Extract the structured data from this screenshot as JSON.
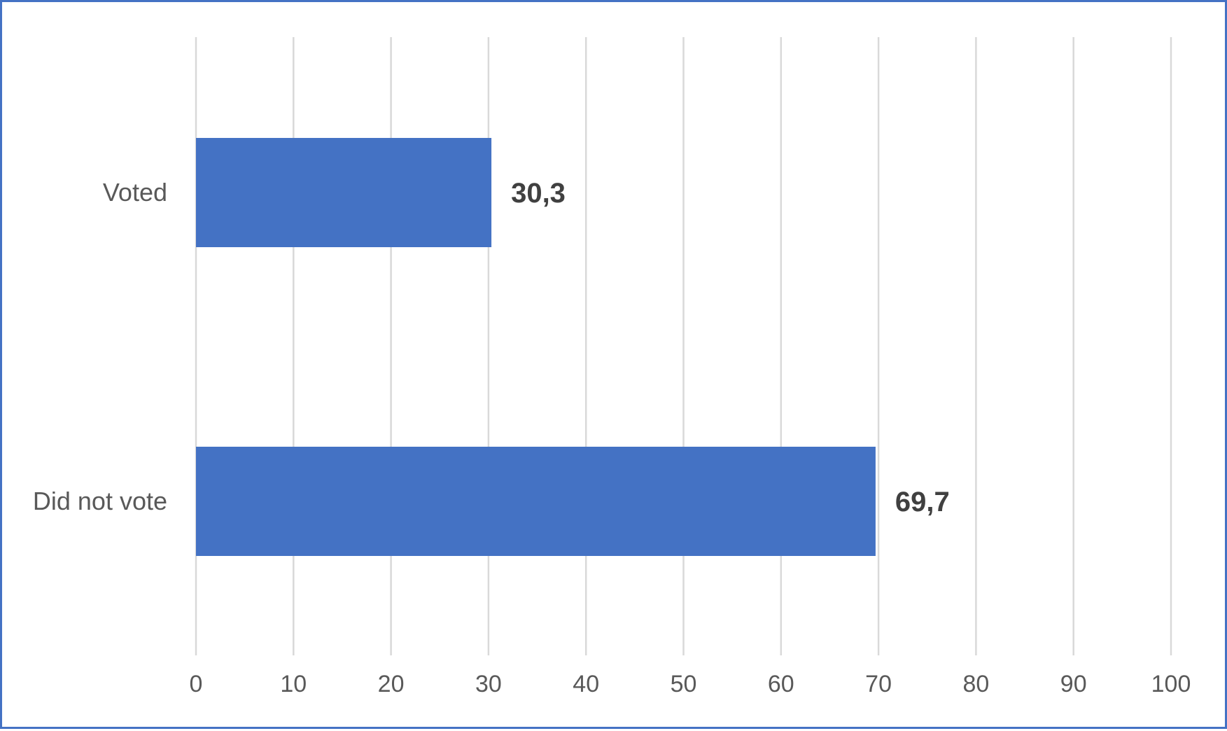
{
  "chart_data": {
    "type": "bar",
    "orientation": "horizontal",
    "categories": [
      "Voted",
      "Did not vote"
    ],
    "values": [
      30.3,
      69.7
    ],
    "data_labels": [
      "30,3",
      "69,7"
    ],
    "xlim": [
      0,
      100
    ],
    "x_ticks": [
      0,
      10,
      20,
      30,
      40,
      50,
      60,
      70,
      80,
      90,
      100
    ],
    "x_tick_labels": [
      "0",
      "10",
      "20",
      "30",
      "40",
      "50",
      "60",
      "70",
      "80",
      "90",
      "100"
    ],
    "grid": "vertical major gridlines",
    "legend": "none",
    "colors": {
      "bar": "#4472c4",
      "frame": "#4472c4",
      "gridline": "#d9d9d9",
      "tick_text": "#595959",
      "data_label_text": "#404040"
    }
  }
}
